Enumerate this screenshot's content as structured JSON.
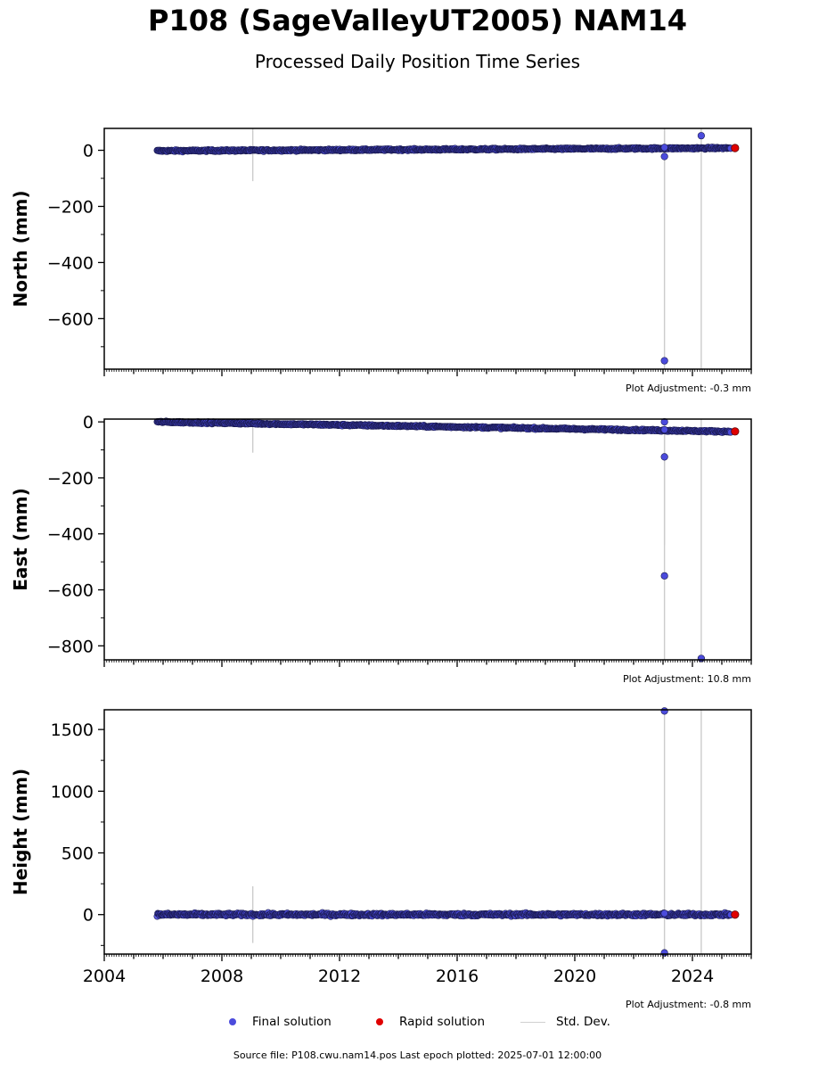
{
  "title": "P108 (SageValleyUT2005) NAM14",
  "subtitle": "Processed Daily Position Time Series",
  "colors": {
    "final": "#4b4bdc",
    "final_edge": "#1a1a50",
    "rapid": "#e00000",
    "stddev": "#cccccc"
  },
  "legend": {
    "final": "Final solution",
    "rapid": "Rapid solution",
    "stddev": "Std. Dev."
  },
  "footer": "Source file: P108.cwu.nam14.pos  Last epoch plotted: 2025-07-01 12:00:00",
  "chart_data": [
    {
      "type": "scatter",
      "ylabel": "North (mm)",
      "adjustment": "Plot Adjustment: -0.3 mm",
      "xlim": [
        2004.0,
        2026.0
      ],
      "ylim": [
        -780,
        78
      ],
      "yticks": [
        0,
        -200,
        -400,
        -600
      ],
      "ytick_labels": [
        "0",
        "−200",
        "−400",
        "−600"
      ],
      "show_xtick_labels": false,
      "trend": {
        "x": [
          2005.8,
          2025.5
        ],
        "y": [
          -2,
          8
        ],
        "noise": 2.2,
        "x_start": 2005.8,
        "x_end": 2025.3
      },
      "outliers": [
        [
          2023.05,
          10
        ],
        [
          2023.05,
          -22
        ],
        [
          2023.05,
          -750
        ],
        [
          2024.3,
          52
        ]
      ],
      "stddev_lines": [
        [
          2009.05,
          -110,
          78
        ],
        [
          2023.05,
          -210,
          78
        ],
        [
          2023.05,
          -780,
          78
        ],
        [
          2024.3,
          -780,
          78
        ]
      ],
      "rapid": {
        "x": 2025.45,
        "y": 8
      }
    },
    {
      "type": "scatter",
      "ylabel": "East (mm)",
      "adjustment": "Plot Adjustment: 10.8 mm",
      "xlim": [
        2004.0,
        2026.0
      ],
      "ylim": [
        -850,
        10
      ],
      "yticks": [
        0,
        -200,
        -400,
        -600,
        -800
      ],
      "ytick_labels": [
        "0",
        "−200",
        "−400",
        "−600",
        "−800"
      ],
      "show_xtick_labels": false,
      "trend": {
        "x": [
          2005.8,
          2025.5
        ],
        "y": [
          0,
          -35
        ],
        "noise": 2.2,
        "x_start": 2005.8,
        "x_end": 2025.3
      },
      "outliers": [
        [
          2023.05,
          0
        ],
        [
          2023.05,
          -28
        ],
        [
          2023.05,
          -125
        ],
        [
          2023.05,
          -550
        ],
        [
          2024.3,
          -845
        ]
      ],
      "stddev_lines": [
        [
          2009.05,
          -110,
          10
        ],
        [
          2023.05,
          -440,
          10
        ],
        [
          2023.05,
          -850,
          10
        ],
        [
          2024.3,
          -850,
          10
        ]
      ],
      "rapid": {
        "x": 2025.45,
        "y": -34
      }
    },
    {
      "type": "scatter",
      "ylabel": "Height (mm)",
      "adjustment": "Plot Adjustment: -0.8 mm",
      "xlim": [
        2004.0,
        2026.0
      ],
      "ylim": [
        -320,
        1660
      ],
      "yticks": [
        0,
        500,
        1000,
        1500
      ],
      "ytick_labels": [
        "0",
        "500",
        "1000",
        "1500"
      ],
      "show_xtick_labels": true,
      "xticks": [
        2004,
        2008,
        2012,
        2016,
        2020,
        2024
      ],
      "xtick_labels": [
        "2004",
        "2008",
        "2012",
        "2016",
        "2020",
        "2024"
      ],
      "trend": {
        "x": [
          2005.8,
          2025.5
        ],
        "y": [
          0,
          0
        ],
        "noise": 8,
        "x_start": 2005.8,
        "x_end": 2025.3
      },
      "outliers": [
        [
          2023.05,
          1650
        ],
        [
          2023.05,
          10
        ],
        [
          2023.05,
          -310
        ]
      ],
      "stddev_lines": [
        [
          2009.05,
          -230,
          230
        ],
        [
          2023.05,
          -320,
          1660
        ],
        [
          2024.3,
          -320,
          1660
        ]
      ],
      "rapid": {
        "x": 2025.45,
        "y": 0
      }
    }
  ]
}
